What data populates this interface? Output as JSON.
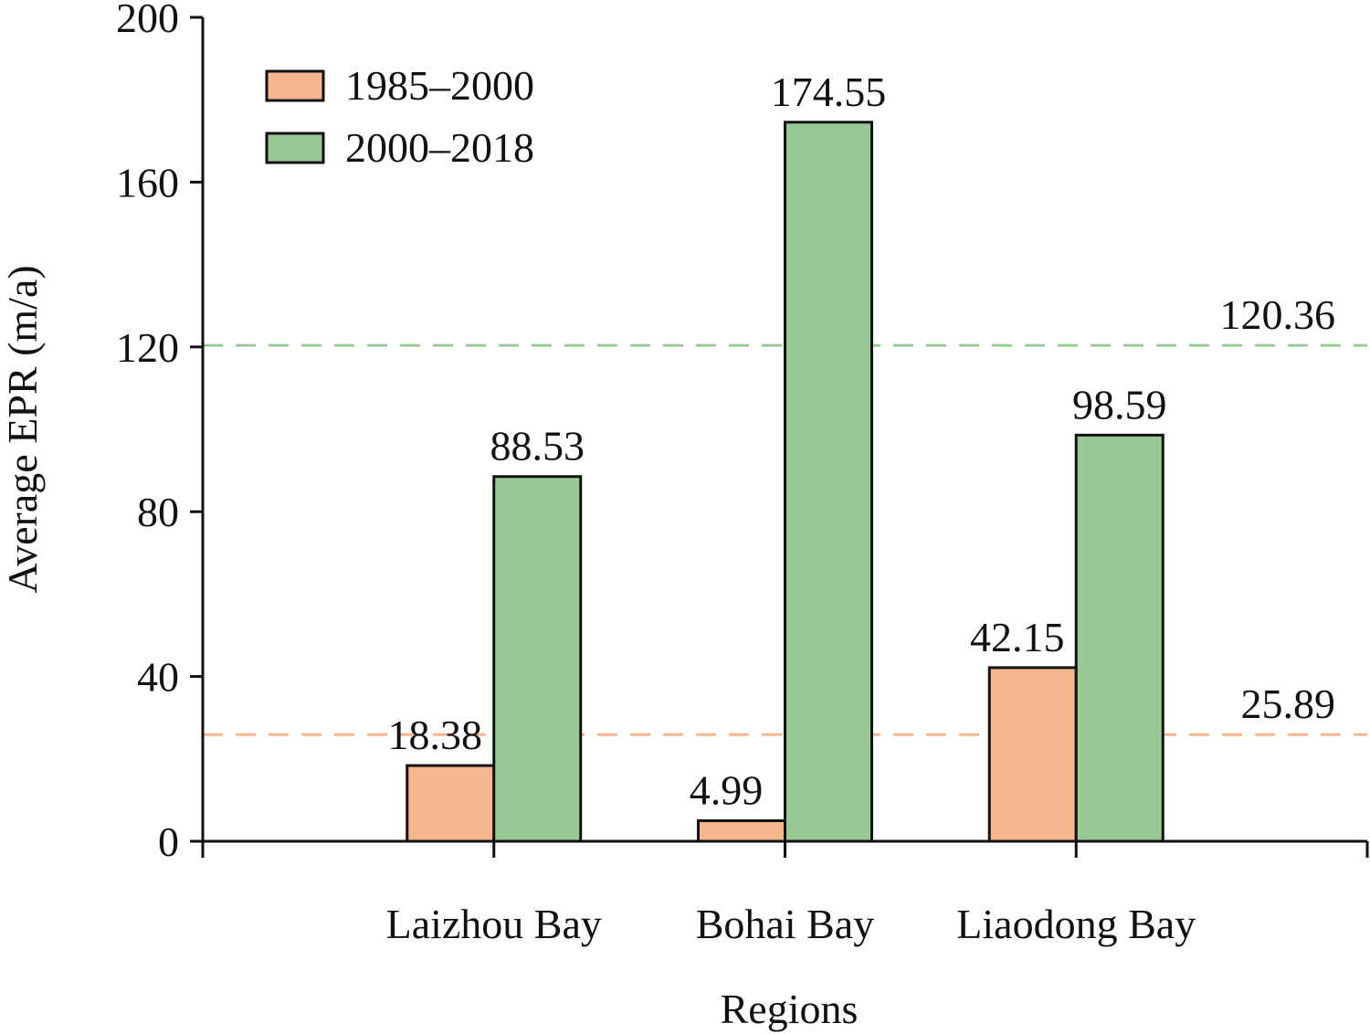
{
  "chart_data": {
    "type": "bar",
    "xlabel": "Regions",
    "ylabel": "Average EPR (m/a)",
    "ylim": [
      0,
      200
    ],
    "yticks": [
      0,
      40,
      80,
      120,
      160,
      200
    ],
    "categories": [
      "Laizhou Bay",
      "Bohai Bay",
      "Liaodong Bay"
    ],
    "series": [
      {
        "name": "1985–2000",
        "values": [
          18.38,
          4.99,
          42.15
        ],
        "labels": [
          "18.38",
          "4.99",
          "42.15"
        ],
        "color": "#f5b68d"
      },
      {
        "name": "2000–2018",
        "values": [
          88.53,
          174.55,
          98.59
        ],
        "labels": [
          "88.53",
          "174.55",
          "98.59"
        ],
        "color": "#98c994"
      }
    ],
    "reference_lines": [
      {
        "value": 120.36,
        "label": "120.36",
        "color": "#98c994",
        "style": "dashed"
      },
      {
        "value": 25.89,
        "label": "25.89",
        "color": "#f5b68d",
        "style": "dashed"
      }
    ],
    "legend": {
      "position": "top-left"
    },
    "grid": false
  }
}
